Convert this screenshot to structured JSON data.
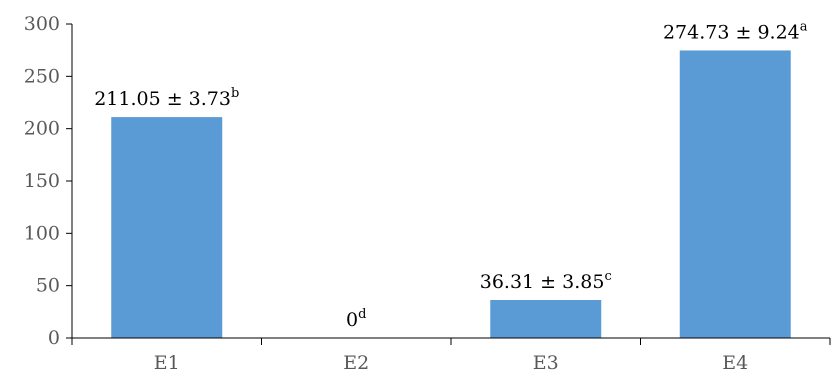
{
  "chart_data": {
    "type": "bar",
    "title": "",
    "xlabel": "",
    "ylabel": "",
    "categories": [
      "E1",
      "E2",
      "E3",
      "E4"
    ],
    "values": [
      211.05,
      0,
      36.31,
      274.73
    ],
    "errors": [
      3.73,
      0,
      3.85,
      9.24
    ],
    "data_labels": [
      {
        "text": "211.05 ± 3.73",
        "sup": "b"
      },
      {
        "text": "0",
        "sup": "d"
      },
      {
        "text": "36.31 ± 3.85",
        "sup": "c"
      },
      {
        "text": "274.73 ± 9.24",
        "sup": "a"
      }
    ],
    "ylim": [
      0,
      300
    ],
    "yticks": [
      0,
      50,
      100,
      150,
      200,
      250,
      300
    ],
    "grid": false,
    "legend": "none",
    "bar_color": "#5B9BD5",
    "axis_color": "#000000"
  }
}
